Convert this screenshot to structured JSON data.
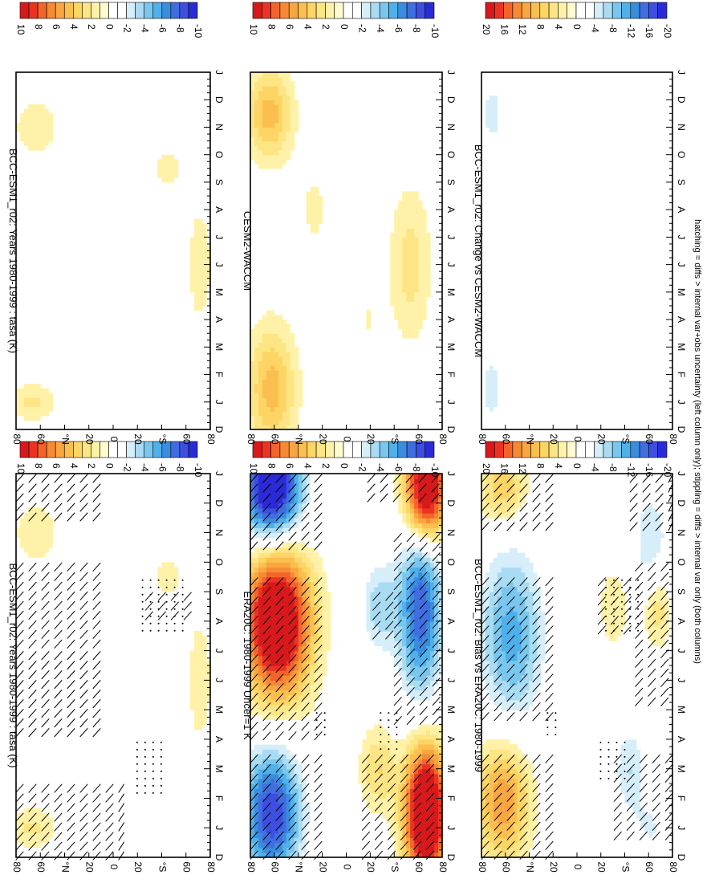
{
  "footnote": "hatching = diffs > internal var+obs uncertainty (left column only); stippling = diffs > internal var only (both columns)",
  "colormaps": {
    "field": [
      "#d7191c",
      "#ea3323",
      "#f4642a",
      "#f68a34",
      "#f9a641",
      "#fbbf4f",
      "#fcd565",
      "#fee584",
      "#fff2a8",
      "#fffbd1",
      "#ffffff",
      "#ffffff",
      "#d6eefa",
      "#a9dcf3",
      "#79c7ee",
      "#4fb0ea",
      "#3a8cdf",
      "#3f6ee0",
      "#3d4fe0",
      "#2a2bd6"
    ],
    "diff": [
      "#d7191c",
      "#ea3323",
      "#f4642a",
      "#f68a34",
      "#f9a641",
      "#fbbf4f",
      "#fcd565",
      "#fee584",
      "#fff2a8",
      "#fffbd1",
      "#ffffff",
      "#ffffff",
      "#d6eefa",
      "#a9dcf3",
      "#79c7ee",
      "#4fb0ea",
      "#3a8cdf",
      "#3f6ee0",
      "#3d4fe0",
      "#2a2bd6"
    ]
  },
  "chart_data": [
    {
      "type": "heatmap",
      "panel": "top-left",
      "title": "BCC-ESM1_r02: Years 1980-1999 : tasa (K)",
      "x_ticks": [
        "D",
        "J",
        "F",
        "M",
        "A",
        "M",
        "J",
        "J",
        "A",
        "S",
        "O",
        "N",
        "D",
        "J"
      ],
      "y_ticks": [
        "80",
        "60",
        "°N",
        "20",
        "0",
        "20",
        "°S",
        "60",
        "80"
      ],
      "colorbar": [
        "10",
        "8",
        "6",
        "4",
        "2",
        "0",
        "-2",
        "-4",
        "-6",
        "-8",
        "-10"
      ],
      "cmap": "field",
      "blobs": [
        {
          "m": 1,
          "lat": 75,
          "amp": 2.2,
          "sm": 0.5,
          "sl": 15
        },
        {
          "m": 11,
          "lat": 72,
          "amp": 2.0,
          "sm": 0.7,
          "sl": 14
        },
        {
          "m": 6,
          "lat": -80,
          "amp": 1.8,
          "sm": 1.6,
          "sl": 8
        },
        {
          "m": 9.5,
          "lat": -50,
          "amp": 1.6,
          "sm": 0.6,
          "sl": 10
        }
      ],
      "hatch": [
        {
          "m0": 0,
          "m1": 2.5,
          "l0": -10,
          "l1": 90
        },
        {
          "m0": 4,
          "m1": 7,
          "l0": 10,
          "l1": 90
        },
        {
          "m0": 7,
          "m1": 10,
          "l0": 10,
          "l1": 90
        },
        {
          "m0": 11.5,
          "m1": 13,
          "l0": 10,
          "l1": 90
        },
        {
          "m0": 8,
          "m1": 9,
          "l0": -75,
          "l1": -30
        }
      ],
      "stipple": [
        {
          "m0": 2,
          "m1": 4,
          "l0": -50,
          "l1": -20
        },
        {
          "m0": 7.5,
          "m1": 9.5,
          "l0": -65,
          "l1": -25
        }
      ]
    },
    {
      "type": "heatmap",
      "panel": "top-right",
      "title": "BCC-ESM1_r02: Years 1980-1999 : tasa (K)",
      "x_ticks": [
        "D",
        "J",
        "F",
        "M",
        "A",
        "M",
        "J",
        "J",
        "A",
        "S",
        "O",
        "N",
        "D",
        "J"
      ],
      "y_ticks": [
        "80",
        "60",
        "°N",
        "20",
        "0",
        "20",
        "°S",
        "60",
        "80"
      ],
      "colorbar": [
        "10",
        "8",
        "6",
        "4",
        "2",
        "0",
        "-2",
        "-4",
        "-6",
        "-8",
        "-10"
      ],
      "cmap": "field",
      "blobs": [
        {
          "m": 1,
          "lat": 75,
          "amp": 2.2,
          "sm": 0.5,
          "sl": 15
        },
        {
          "m": 11,
          "lat": 72,
          "amp": 2.0,
          "sm": 0.7,
          "sl": 14
        },
        {
          "m": 6,
          "lat": -80,
          "amp": 1.8,
          "sm": 1.6,
          "sl": 8
        },
        {
          "m": 9.5,
          "lat": -50,
          "amp": 1.6,
          "sm": 0.6,
          "sl": 10
        }
      ],
      "hatch": [],
      "stipple": []
    },
    {
      "type": "heatmap",
      "panel": "middle-left",
      "title": "ERA20C: 1980-1999 Uncer=1 K",
      "x_ticks": [
        "D",
        "J",
        "F",
        "M",
        "A",
        "M",
        "J",
        "J",
        "A",
        "S",
        "O",
        "N",
        "D",
        "J"
      ],
      "y_ticks": [
        "80",
        "60",
        "°N",
        "20",
        "0",
        "20",
        "°S",
        "60",
        "80"
      ],
      "colorbar": [
        "10",
        "8",
        "6",
        "4",
        "2",
        "0",
        "-2",
        "-4",
        "-6",
        "-8",
        "-10"
      ],
      "cmap": "field",
      "blobs": [
        {
          "m": 8,
          "lat": 65,
          "amp": 13,
          "sm": 1.8,
          "sl": 22
        },
        {
          "m": 1.5,
          "lat": 70,
          "amp": -9,
          "sm": 1.6,
          "sl": 20
        },
        {
          "m": 12.5,
          "lat": 70,
          "amp": -12,
          "sm": 1.3,
          "sl": 20
        },
        {
          "m": 1.5,
          "lat": -75,
          "amp": 14,
          "sm": 1.6,
          "sl": 14
        },
        {
          "m": 12.5,
          "lat": -75,
          "amp": 13,
          "sm": 1.3,
          "sl": 14
        },
        {
          "m": 8.5,
          "lat": -70,
          "amp": -8,
          "sm": 2.2,
          "sl": 15
        },
        {
          "m": 8.5,
          "lat": -30,
          "amp": -3.5,
          "sm": 1.2,
          "sl": 12
        },
        {
          "m": 3,
          "lat": -30,
          "amp": 3,
          "sm": 1.0,
          "sl": 12
        }
      ],
      "hatch": [
        {
          "m0": 0,
          "m1": 3.5,
          "l0": 15,
          "l1": 90
        },
        {
          "m0": 4,
          "m1": 9.5,
          "l0": 15,
          "l1": 90
        },
        {
          "m0": 10.5,
          "m1": 13,
          "l0": 15,
          "l1": 90
        },
        {
          "m0": 0,
          "m1": 3.5,
          "l0": -90,
          "l1": -15
        },
        {
          "m0": 4.5,
          "m1": 11,
          "l0": -90,
          "l1": -45
        },
        {
          "m0": 7.5,
          "m1": 9,
          "l0": -50,
          "l1": -25
        },
        {
          "m0": 12,
          "m1": 13,
          "l0": -90,
          "l1": -20
        }
      ],
      "stipple": [
        {
          "m0": 3.5,
          "m1": 5,
          "l0": -50,
          "l1": -30
        },
        {
          "m0": 4,
          "m1": 5,
          "l0": 15,
          "l1": 30
        }
      ]
    },
    {
      "type": "heatmap",
      "panel": "middle-right",
      "title": "CESM2-WACCM",
      "x_ticks": [
        "D",
        "J",
        "F",
        "M",
        "A",
        "M",
        "J",
        "J",
        "A",
        "S",
        "O",
        "N",
        "D",
        "J"
      ],
      "y_ticks": [
        "80",
        "60",
        "°N",
        "20",
        "0",
        "20",
        "°S",
        "60",
        "80"
      ],
      "colorbar": [
        "10",
        "8",
        "6",
        "4",
        "2",
        "0",
        "-2",
        "-4",
        "-6",
        "-8",
        "-10"
      ],
      "cmap": "field",
      "blobs": [
        {
          "m": 1.5,
          "lat": 70,
          "amp": 4.5,
          "sm": 1.6,
          "sl": 16
        },
        {
          "m": 11.5,
          "lat": 72,
          "amp": 4.5,
          "sm": 1.2,
          "sl": 15
        },
        {
          "m": 6,
          "lat": -60,
          "amp": 2.5,
          "sm": 2.0,
          "sl": 14
        },
        {
          "m": 8,
          "lat": 30,
          "amp": 1.2,
          "sm": 1.5,
          "sl": 12
        },
        {
          "m": 4,
          "lat": -20,
          "amp": 1.0,
          "sm": 1.2,
          "sl": 10
        }
      ],
      "hatch": [],
      "stipple": []
    },
    {
      "type": "heatmap",
      "panel": "bottom-left",
      "title": "BCC-ESM1_r02: Bias vs ERA20C: 1980-1999",
      "x_ticks": [
        "D",
        "J",
        "F",
        "M",
        "A",
        "M",
        "J",
        "J",
        "A",
        "S",
        "O",
        "N",
        "D",
        "J"
      ],
      "y_ticks": [
        "80",
        "60",
        "°N",
        "20",
        "0",
        "20",
        "°S",
        "60",
        "80"
      ],
      "colorbar": [
        "20",
        "16",
        "12",
        "8",
        "4",
        "0",
        "-4",
        "-8",
        "-12",
        "-16",
        "-20"
      ],
      "cmap": "diff",
      "blobs": [
        {
          "m": 2,
          "lat": 70,
          "amp": 12,
          "sm": 1.5,
          "sl": 18
        },
        {
          "m": 7.5,
          "lat": 62,
          "amp": -11,
          "sm": 2.2,
          "sl": 22
        },
        {
          "m": 12.5,
          "lat": 70,
          "amp": 8,
          "sm": 0.9,
          "sl": 16
        },
        {
          "m": 3,
          "lat": -50,
          "amp": -6,
          "sm": 1.2,
          "sl": 12
        },
        {
          "m": 10.5,
          "lat": -70,
          "amp": -6,
          "sm": 1.6,
          "sl": 14
        },
        {
          "m": 8.5,
          "lat": -75,
          "amp": 7,
          "sm": 1.0,
          "sl": 10
        },
        {
          "m": 8.5,
          "lat": -35,
          "amp": 4,
          "sm": 1.0,
          "sl": 10
        },
        {
          "m": 1,
          "lat": -70,
          "amp": -4,
          "sm": 0.7,
          "sl": 12
        }
      ],
      "hatch": [
        {
          "m0": 0,
          "m1": 3.5,
          "l0": 15,
          "l1": 90
        },
        {
          "m0": 4.5,
          "m1": 9.5,
          "l0": 15,
          "l1": 90
        },
        {
          "m0": 11,
          "m1": 13,
          "l0": 15,
          "l1": 90
        },
        {
          "m0": 0.5,
          "m1": 3.5,
          "l0": -90,
          "l1": -35
        },
        {
          "m0": 5,
          "m1": 10,
          "l0": -90,
          "l1": -55
        },
        {
          "m0": 7.5,
          "m1": 9.5,
          "l0": -55,
          "l1": -20
        },
        {
          "m0": 11,
          "m1": 13,
          "l0": -90,
          "l1": -50
        }
      ],
      "stipple": [
        {
          "m0": 2.5,
          "m1": 4,
          "l0": -50,
          "l1": -20
        },
        {
          "m0": 7.5,
          "m1": 9.5,
          "l0": -65,
          "l1": -25
        },
        {
          "m0": 4,
          "m1": 5,
          "l0": 15,
          "l1": 30
        }
      ]
    },
    {
      "type": "heatmap",
      "panel": "bottom-right",
      "title": "BCC-ESM1_r02: Change vs CESM2-WACCM",
      "x_ticks": [
        "D",
        "J",
        "F",
        "M",
        "A",
        "M",
        "J",
        "J",
        "A",
        "S",
        "O",
        "N",
        "D",
        "J"
      ],
      "y_ticks": [
        "80",
        "60",
        "°N",
        "20",
        "0",
        "20",
        "°S",
        "60",
        "80"
      ],
      "colorbar": [
        "20",
        "16",
        "12",
        "8",
        "4",
        "0",
        "-4",
        "-8",
        "-12",
        "-16",
        "-20"
      ],
      "cmap": "diff",
      "blobs": [
        {
          "m": 1.5,
          "lat": 80,
          "amp": -5,
          "sm": 1.2,
          "sl": 10
        },
        {
          "m": 11.5,
          "lat": 80,
          "amp": -5,
          "sm": 1.0,
          "sl": 10
        }
      ],
      "hatch": [],
      "stipple": []
    }
  ]
}
